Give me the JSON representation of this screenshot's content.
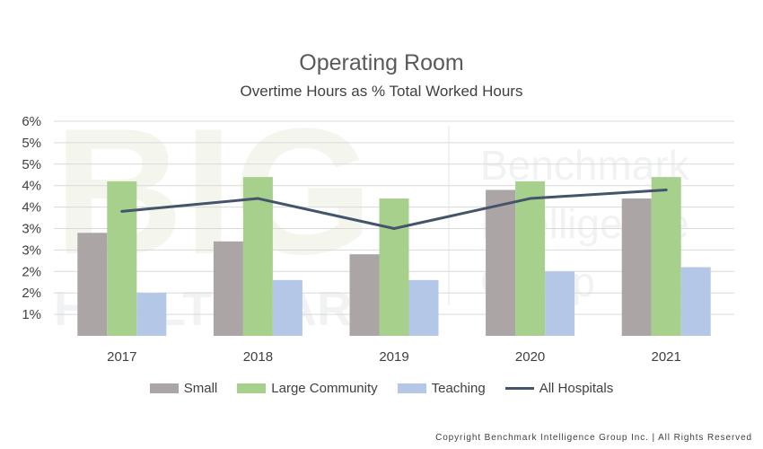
{
  "chart_data": {
    "type": "bar",
    "title": "Operating Room",
    "subtitle": "Overtime Hours as % Total Worked Hours",
    "categories": [
      "2017",
      "2018",
      "2019",
      "2020",
      "2021"
    ],
    "y_tick_labels": [
      "6%",
      "5%",
      "5%",
      "4%",
      "4%",
      "3%",
      "3%",
      "2%",
      "2%",
      "1%"
    ],
    "ylim": [
      0.5,
      5.5
    ],
    "y_tick_values": [
      5.5,
      5.0,
      4.5,
      4.0,
      3.5,
      3.0,
      2.5,
      2.0,
      1.5,
      1.0
    ],
    "grid": true,
    "legend_position": "bottom",
    "series": [
      {
        "name": "Small",
        "type": "bar",
        "color": "#aba5a5",
        "values": [
          2.9,
          2.7,
          2.4,
          3.9,
          3.7
        ]
      },
      {
        "name": "Large Community",
        "type": "bar",
        "color": "#a8d08d",
        "values": [
          4.1,
          4.2,
          3.7,
          4.1,
          4.2
        ]
      },
      {
        "name": "Teaching",
        "type": "bar",
        "color": "#b4c7e7",
        "values": [
          1.5,
          1.8,
          1.8,
          2.0,
          2.1
        ]
      },
      {
        "name": "All Hospitals",
        "type": "line",
        "color": "#44546a",
        "values": [
          3.4,
          3.7,
          3.0,
          3.7,
          3.9
        ]
      }
    ]
  },
  "watermark": {
    "text_big": "BIG",
    "text_healthcare": "HEALTHCARE",
    "text_lines": [
      "Benchmark",
      "Intelligence",
      "Group"
    ]
  },
  "footer": {
    "copyright": "Copyright Benchmark Intelligence Group Inc. | All Rights Reserved"
  }
}
